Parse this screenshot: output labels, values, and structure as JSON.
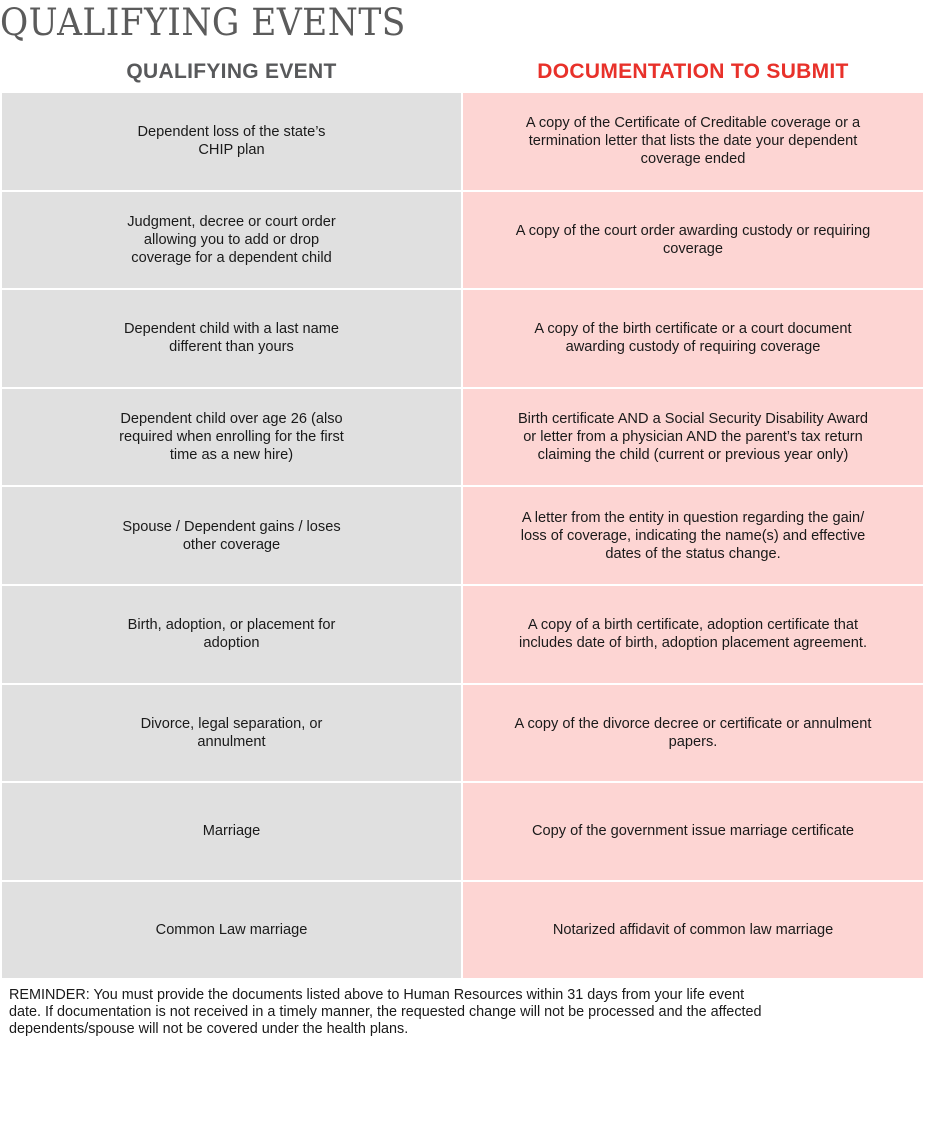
{
  "title": "QUALIFYING EVENTS",
  "columns": {
    "event": "QUALIFYING EVENT",
    "documentation": "DOCUMENTATION TO SUBMIT"
  },
  "colors": {
    "event_header": "#58595b",
    "documentation_header": "#e8312a",
    "event_cell": "#e0e0e0",
    "documentation_cell": "#fdd5d3"
  },
  "rows": [
    {
      "event": "Dependent loss of the state’s\nCHIP plan",
      "documentation": "A copy of the Certificate of Creditable coverage or a\ntermination letter that lists the date your dependent\ncoverage ended"
    },
    {
      "event": "Judgment, decree or court order\nallowing you to add or drop\ncoverage for a dependent child",
      "documentation": "A copy of the court order awarding custody or requiring\ncoverage"
    },
    {
      "event": "Dependent child with a last name\ndifferent than yours",
      "documentation": "A copy of the birth certificate or a court document\nawarding custody of requiring coverage"
    },
    {
      "event": "Dependent child over age 26 (also\nrequired when enrolling for the first\ntime as a new hire)",
      "documentation": "Birth certificate AND a Social Security Disability Award\nor letter from a physician AND the parent’s tax return\nclaiming the child (current or previous year only)"
    },
    {
      "event": "Spouse / Dependent gains / loses\nother coverage",
      "documentation": "A letter from the entity in question regarding the gain/\nloss of coverage, indicating the name(s) and effective\ndates of the status change."
    },
    {
      "event": "Birth, adoption, or placement for\nadoption",
      "documentation": "A copy of a birth certificate, adoption certificate that\nincludes date of birth, adoption placement agreement."
    },
    {
      "event": "Divorce, legal separation, or\nannulment",
      "documentation": "A copy of the divorce decree or certificate or annulment\npapers."
    },
    {
      "event": "Marriage",
      "documentation": "Copy of the government issue marriage certificate"
    },
    {
      "event": "Common Law marriage",
      "documentation": "Notarized affidavit of common law marriage"
    }
  ],
  "reminder": "REMINDER: You must provide the documents listed above to Human Resources within 31 days from your life event\ndate. If documentation is not received in a timely manner, the requested change will not be processed and the affected\ndependents/spouse will not be covered under the health plans."
}
